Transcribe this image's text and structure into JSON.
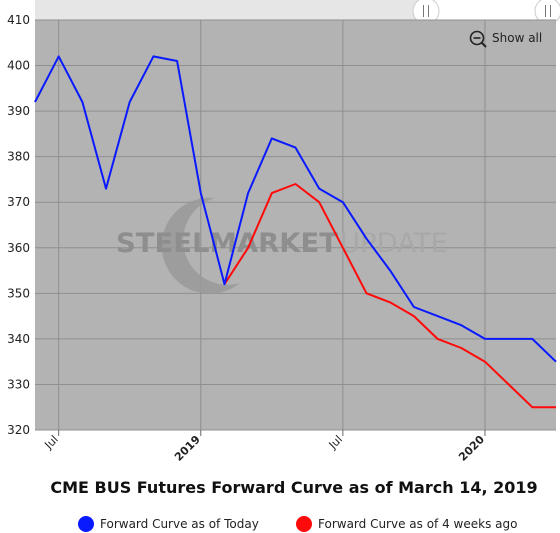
{
  "chart_data": {
    "type": "line",
    "title": "CME BUS Futures Forward Curve as of March 14, 2019",
    "xlabel": "",
    "ylabel": "",
    "ylim": [
      320,
      410
    ],
    "y_ticks": [
      320,
      330,
      340,
      350,
      360,
      370,
      380,
      390,
      400,
      410
    ],
    "x_ticks": [
      {
        "label": "Jul",
        "month": "2018-07",
        "bold": false
      },
      {
        "label": "2019",
        "month": "2019-01",
        "bold": true
      },
      {
        "label": "Jul",
        "month": "2019-07",
        "bold": false
      },
      {
        "label": "2020",
        "month": "2020-01",
        "bold": true
      }
    ],
    "x_range": [
      "2018-06",
      "2020-04"
    ],
    "grid": true,
    "legend_position": "bottom",
    "series": [
      {
        "name": "Forward Curve as of Today",
        "color": "#0a1aff",
        "x": [
          "2018-06",
          "2018-07",
          "2018-08",
          "2018-09",
          "2018-10",
          "2018-11",
          "2018-12",
          "2019-01",
          "2019-02",
          "2019-03",
          "2019-04",
          "2019-05",
          "2019-06",
          "2019-07",
          "2019-08",
          "2019-09",
          "2019-10",
          "2019-11",
          "2019-12",
          "2020-01",
          "2020-02",
          "2020-03",
          "2020-04"
        ],
        "values": [
          392,
          402,
          392,
          373,
          392,
          402,
          401,
          372,
          352,
          372,
          384,
          382,
          373,
          370,
          362,
          355,
          347,
          345,
          343,
          340,
          340,
          340,
          335
        ]
      },
      {
        "name": "Forward Curve as of 4 weeks ago",
        "color": "#ff0a0a",
        "x": [
          "2019-02",
          "2019-03",
          "2019-04",
          "2019-05",
          "2019-06",
          "2019-07",
          "2019-08",
          "2019-09",
          "2019-10",
          "2019-11",
          "2019-12",
          "2020-01",
          "2020-02",
          "2020-03",
          "2020-04"
        ],
        "values": [
          352,
          360,
          372,
          374,
          370,
          360,
          350,
          348,
          345,
          340,
          338,
          335,
          330,
          325,
          325
        ]
      }
    ]
  },
  "controls": {
    "show_all_label": "Show all",
    "zoom_icon": "zoom-out-icon",
    "handle_icon": "scroll-handle-icon"
  },
  "watermark": {
    "dark_text": "STEELMARKET",
    "light_text": "UPDATE"
  },
  "colors": {
    "plot_background": "#b3b3b3",
    "grid": "#8f8f8f"
  }
}
